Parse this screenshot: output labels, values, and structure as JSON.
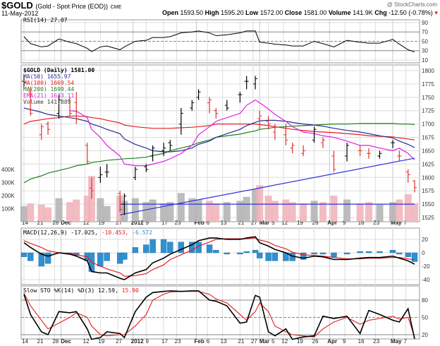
{
  "header": {
    "symbol": "$GOLD",
    "description": "(Gold - Spot Price (EOD))",
    "exchange": "CME",
    "date": "11-May-2012",
    "watermark": "@ StockCharts.com",
    "open_label": "Open",
    "open": "1593.50",
    "high_label": "High",
    "high": "1595.20",
    "low_label": "Low",
    "low": "1572.00",
    "close_label": "Close",
    "close": "1581.00",
    "volume_label": "Volume",
    "volume": "141.9K",
    "chg_label": "Chg",
    "chg": "-12.50 (-0.78%)",
    "chg_icon": "down-triangle-icon"
  },
  "legends": {
    "rsi": "RSI(14) 27.07",
    "price": "$GOLD (Daily) 1581.00",
    "ma50": "MA(50) 1655.97",
    "ma100": "MA(100) 1669.54",
    "ma200": "MA(200) 1699.44",
    "ema21": "EMA(21) 1633.11",
    "volume": "Volume 141,889",
    "macd_name": "MACD(12,26,9) -17.025,",
    "macd_signal": "-10.453,",
    "macd_hist": "-6.572",
    "sto_name": "Slow STO %K(14) %D(3) 12.59,",
    "sto_d": "15.90"
  },
  "colors": {
    "up": "#000000",
    "down": "#e03030",
    "ma50": "#2a2a9a",
    "ma100": "#e02020",
    "ma200": "#208020",
    "ema21": "#e020e0",
    "trend": "#3030e0",
    "vol_up": "#b0b0b0",
    "vol_down": "#f0b0b8",
    "macd": "#000000",
    "signal": "#e02020",
    "hist": "#3090d0",
    "grid": "#dcdcdc"
  },
  "chart_data": {
    "type": "ohlc",
    "dates": [
      "2011-11-14",
      "2011-11-17",
      "2011-11-22",
      "2011-11-25",
      "2011-11-30",
      "2011-12-05",
      "2011-12-08",
      "2011-12-13",
      "2011-12-15",
      "2011-12-19",
      "2011-12-22",
      "2011-12-28",
      "2011-12-30",
      "2012-01-04",
      "2012-01-09",
      "2012-01-12",
      "2012-01-17",
      "2012-01-20",
      "2012-01-25",
      "2012-01-30",
      "2012-02-02",
      "2012-02-07",
      "2012-02-10",
      "2012-02-15",
      "2012-02-21",
      "2012-02-24",
      "2012-02-28",
      "2012-03-01",
      "2012-03-05",
      "2012-03-08",
      "2012-03-13",
      "2012-03-16",
      "2012-03-21",
      "2012-03-26",
      "2012-03-30",
      "2012-04-04",
      "2012-04-10",
      "2012-04-16",
      "2012-04-20",
      "2012-04-25",
      "2012-05-01",
      "2012-05-04",
      "2012-05-08",
      "2012-05-11"
    ],
    "ohlc": [
      [
        1780,
        1790,
        1770,
        1778
      ],
      [
        1760,
        1770,
        1715,
        1720
      ],
      [
        1680,
        1700,
        1670,
        1695
      ],
      [
        1700,
        1705,
        1680,
        1690
      ],
      [
        1720,
        1755,
        1710,
        1745
      ],
      [
        1745,
        1750,
        1715,
        1720
      ],
      [
        1740,
        1760,
        1700,
        1710
      ],
      [
        1660,
        1665,
        1625,
        1630
      ],
      [
        1580,
        1600,
        1560,
        1575
      ],
      [
        1600,
        1620,
        1590,
        1605
      ],
      [
        1610,
        1625,
        1600,
        1610
      ],
      [
        1570,
        1575,
        1535,
        1540
      ],
      [
        1550,
        1570,
        1530,
        1565
      ],
      [
        1600,
        1620,
        1595,
        1615
      ],
      [
        1620,
        1625,
        1610,
        1615
      ],
      [
        1640,
        1660,
        1630,
        1655
      ],
      [
        1650,
        1665,
        1640,
        1655
      ],
      [
        1665,
        1670,
        1650,
        1660
      ],
      [
        1700,
        1730,
        1680,
        1720
      ],
      [
        1730,
        1745,
        1725,
        1740
      ],
      [
        1750,
        1765,
        1745,
        1760
      ],
      [
        1740,
        1750,
        1720,
        1745
      ],
      [
        1725,
        1730,
        1710,
        1720
      ],
      [
        1735,
        1745,
        1725,
        1730
      ],
      [
        1755,
        1760,
        1740,
        1755
      ],
      [
        1780,
        1790,
        1765,
        1780
      ],
      [
        1775,
        1790,
        1765,
        1785
      ],
      [
        1710,
        1725,
        1690,
        1715
      ],
      [
        1705,
        1715,
        1690,
        1700
      ],
      [
        1685,
        1700,
        1670,
        1695
      ],
      [
        1680,
        1700,
        1660,
        1670
      ],
      [
        1655,
        1665,
        1645,
        1660
      ],
      [
        1645,
        1660,
        1640,
        1650
      ],
      [
        1670,
        1695,
        1665,
        1690
      ],
      [
        1665,
        1675,
        1655,
        1670
      ],
      [
        1640,
        1650,
        1610,
        1615
      ],
      [
        1640,
        1665,
        1630,
        1660
      ],
      [
        1650,
        1660,
        1640,
        1650
      ],
      [
        1645,
        1655,
        1635,
        1645
      ],
      [
        1640,
        1650,
        1635,
        1645
      ],
      [
        1665,
        1670,
        1655,
        1665
      ],
      [
        1640,
        1650,
        1630,
        1640
      ],
      [
        1610,
        1615,
        1590,
        1605
      ],
      [
        1593.5,
        1595.2,
        1572,
        1581
      ]
    ],
    "ma50": [
      1730,
      1727,
      1722,
      1718,
      1715,
      1712,
      1710,
      1705,
      1700,
      1695,
      1690,
      1682,
      1672,
      1662,
      1655,
      1650,
      1648,
      1648,
      1650,
      1655,
      1662,
      1668,
      1675,
      1682,
      1690,
      1697,
      1703,
      1706,
      1707,
      1707,
      1705,
      1703,
      1700,
      1698,
      1696,
      1692,
      1688,
      1685,
      1682,
      1678,
      1674,
      1668,
      1662,
      1656
    ],
    "ma100": [
      1700,
      1705,
      1708,
      1710,
      1712,
      1715,
      1715,
      1714,
      1712,
      1710,
      1707,
      1702,
      1698,
      1695,
      1693,
      1692,
      1692,
      1692,
      1693,
      1694,
      1695,
      1697,
      1700,
      1700,
      1700,
      1700,
      1700,
      1699,
      1697,
      1695,
      1692,
      1690,
      1688,
      1686,
      1685,
      1684,
      1682,
      1680,
      1678,
      1677,
      1676,
      1674,
      1672,
      1670
    ],
    "ma200": [
      1590,
      1597,
      1603,
      1608,
      1613,
      1618,
      1622,
      1625,
      1628,
      1630,
      1632,
      1634,
      1635,
      1636,
      1638,
      1641,
      1645,
      1650,
      1655,
      1660,
      1665,
      1670,
      1675,
      1678,
      1681,
      1684,
      1687,
      1690,
      1692,
      1694,
      1695,
      1696,
      1697,
      1698,
      1699,
      1700,
      1700,
      1701,
      1701,
      1701,
      1701,
      1700,
      1700,
      1699
    ],
    "ema21": [
      null,
      null,
      null,
      null,
      null,
      1725,
      1724,
      1712,
      1690,
      1675,
      1660,
      1640,
      1625,
      1622,
      1622,
      1625,
      1630,
      1635,
      1645,
      1660,
      1680,
      1695,
      1705,
      1712,
      1720,
      1735,
      1745,
      1740,
      1728,
      1718,
      1705,
      1695,
      1685,
      1682,
      1678,
      1675,
      1668,
      1660,
      1660,
      1655,
      1650,
      1655,
      1645,
      1633
    ],
    "volume_k": [
      120,
      140,
      130,
      110,
      180,
      150,
      170,
      200,
      350,
      180,
      120,
      200,
      160,
      180,
      150,
      170,
      140,
      150,
      220,
      180,
      170,
      160,
      140,
      150,
      160,
      190,
      250,
      280,
      200,
      160,
      170,
      150,
      140,
      160,
      150,
      200,
      170,
      140,
      150,
      130,
      150,
      170,
      210,
      142
    ],
    "trendlines": [
      {
        "from": [
          "2011-12-28",
          1530
        ],
        "to": [
          "2012-05-11",
          1636
        ]
      },
      {
        "from": [
          "2011-12-28",
          1550
        ],
        "to": [
          "2012-05-11",
          1550
        ]
      }
    ],
    "price_ticks": [
      1800,
      1775,
      1750,
      1725,
      1700,
      1675,
      1650,
      1625,
      1600,
      1575,
      1550,
      1525
    ],
    "volume_ticks": [
      {
        "v": 400,
        "label": "400K"
      },
      {
        "v": 300,
        "label": "300K"
      },
      {
        "v": 200,
        "label": "200K"
      },
      {
        "v": 100,
        "label": "100K"
      }
    ],
    "rsi": [
      60,
      45,
      38,
      40,
      55,
      48,
      45,
      35,
      28,
      38,
      40,
      32,
      38,
      50,
      52,
      58,
      58,
      60,
      68,
      70,
      72,
      68,
      62,
      64,
      68,
      72,
      72,
      48,
      46,
      44,
      42,
      40,
      40,
      50,
      45,
      38,
      52,
      48,
      46,
      46,
      54,
      44,
      32,
      27.07
    ],
    "rsi_ticks": [
      90,
      70,
      50,
      30,
      10
    ],
    "macd": [
      15,
      8,
      -2,
      -5,
      0,
      -2,
      -5,
      -12,
      -28,
      -30,
      -30,
      -38,
      -40,
      -30,
      -25,
      -15,
      -8,
      -2,
      5,
      12,
      18,
      22,
      22,
      20,
      20,
      22,
      24,
      15,
      10,
      5,
      0,
      -5,
      -8,
      -5,
      -6,
      -10,
      -10,
      -8,
      -7,
      -7,
      -5,
      -8,
      -12,
      -17.025
    ],
    "macd_signal": [
      18,
      14,
      8,
      3,
      0,
      -1,
      -3,
      -6,
      -14,
      -20,
      -24,
      -30,
      -35,
      -34,
      -31,
      -25,
      -18,
      -10,
      -3,
      4,
      10,
      16,
      20,
      21,
      21,
      21,
      22,
      19,
      16,
      11,
      6,
      1,
      -3,
      -4,
      -5,
      -7,
      -9,
      -9,
      -8,
      -8,
      -7,
      -7,
      -9,
      -10.453
    ],
    "macd_ticks": [
      20,
      0,
      -20,
      -40
    ],
    "sto_k": [
      90,
      55,
      25,
      20,
      60,
      58,
      60,
      30,
      12,
      15,
      25,
      22,
      15,
      60,
      85,
      93,
      95,
      96,
      95,
      96,
      96,
      80,
      78,
      70,
      40,
      42,
      88,
      85,
      25,
      18,
      30,
      12,
      16,
      18,
      52,
      48,
      52,
      22,
      62,
      55,
      45,
      42,
      65,
      12.59
    ],
    "sto_d": [
      92,
      70,
      45,
      30,
      40,
      50,
      58,
      50,
      35,
      20,
      18,
      20,
      20,
      35,
      55,
      80,
      90,
      94,
      95,
      95,
      95,
      90,
      82,
      75,
      55,
      45,
      60,
      75,
      60,
      35,
      25,
      20,
      18,
      16,
      30,
      42,
      50,
      38,
      45,
      48,
      52,
      47,
      50,
      15.9
    ],
    "sto_ticks": [
      80,
      50,
      20
    ],
    "x_ticks": [
      [
        "2011-11-14",
        "14",
        0
      ],
      [
        "2011-11-21",
        "21",
        0
      ],
      [
        "2011-11-28",
        "28",
        0
      ],
      [
        "2011-12-01",
        "Dec",
        1
      ],
      [
        "2011-12-12",
        "12",
        0
      ],
      [
        "2011-12-19",
        "19",
        0
      ],
      [
        "2011-12-27",
        "27",
        0
      ],
      [
        "2012-01-03",
        "2012",
        1
      ],
      [
        "2012-01-09",
        "9",
        0
      ],
      [
        "2012-01-17",
        "17",
        0
      ],
      [
        "2012-01-23",
        "23",
        0
      ],
      [
        "2012-02-01",
        "Feb",
        1
      ],
      [
        "2012-02-06",
        "6",
        0
      ],
      [
        "2012-02-13",
        "13",
        0
      ],
      [
        "2012-02-21",
        "21",
        0
      ],
      [
        "2012-02-27",
        "27",
        0
      ],
      [
        "2012-03-01",
        "Mar",
        1
      ],
      [
        "2012-03-05",
        "5",
        0
      ],
      [
        "2012-03-12",
        "12",
        0
      ],
      [
        "2012-03-19",
        "19",
        0
      ],
      [
        "2012-03-26",
        "26",
        0
      ],
      [
        "2012-04-02",
        "Apr",
        1
      ],
      [
        "2012-04-09",
        "9",
        0
      ],
      [
        "2012-04-16",
        "16",
        0
      ],
      [
        "2012-04-23",
        "23",
        0
      ],
      [
        "2012-05-01",
        "May",
        1
      ],
      [
        "2012-05-07",
        "7",
        0
      ]
    ]
  }
}
